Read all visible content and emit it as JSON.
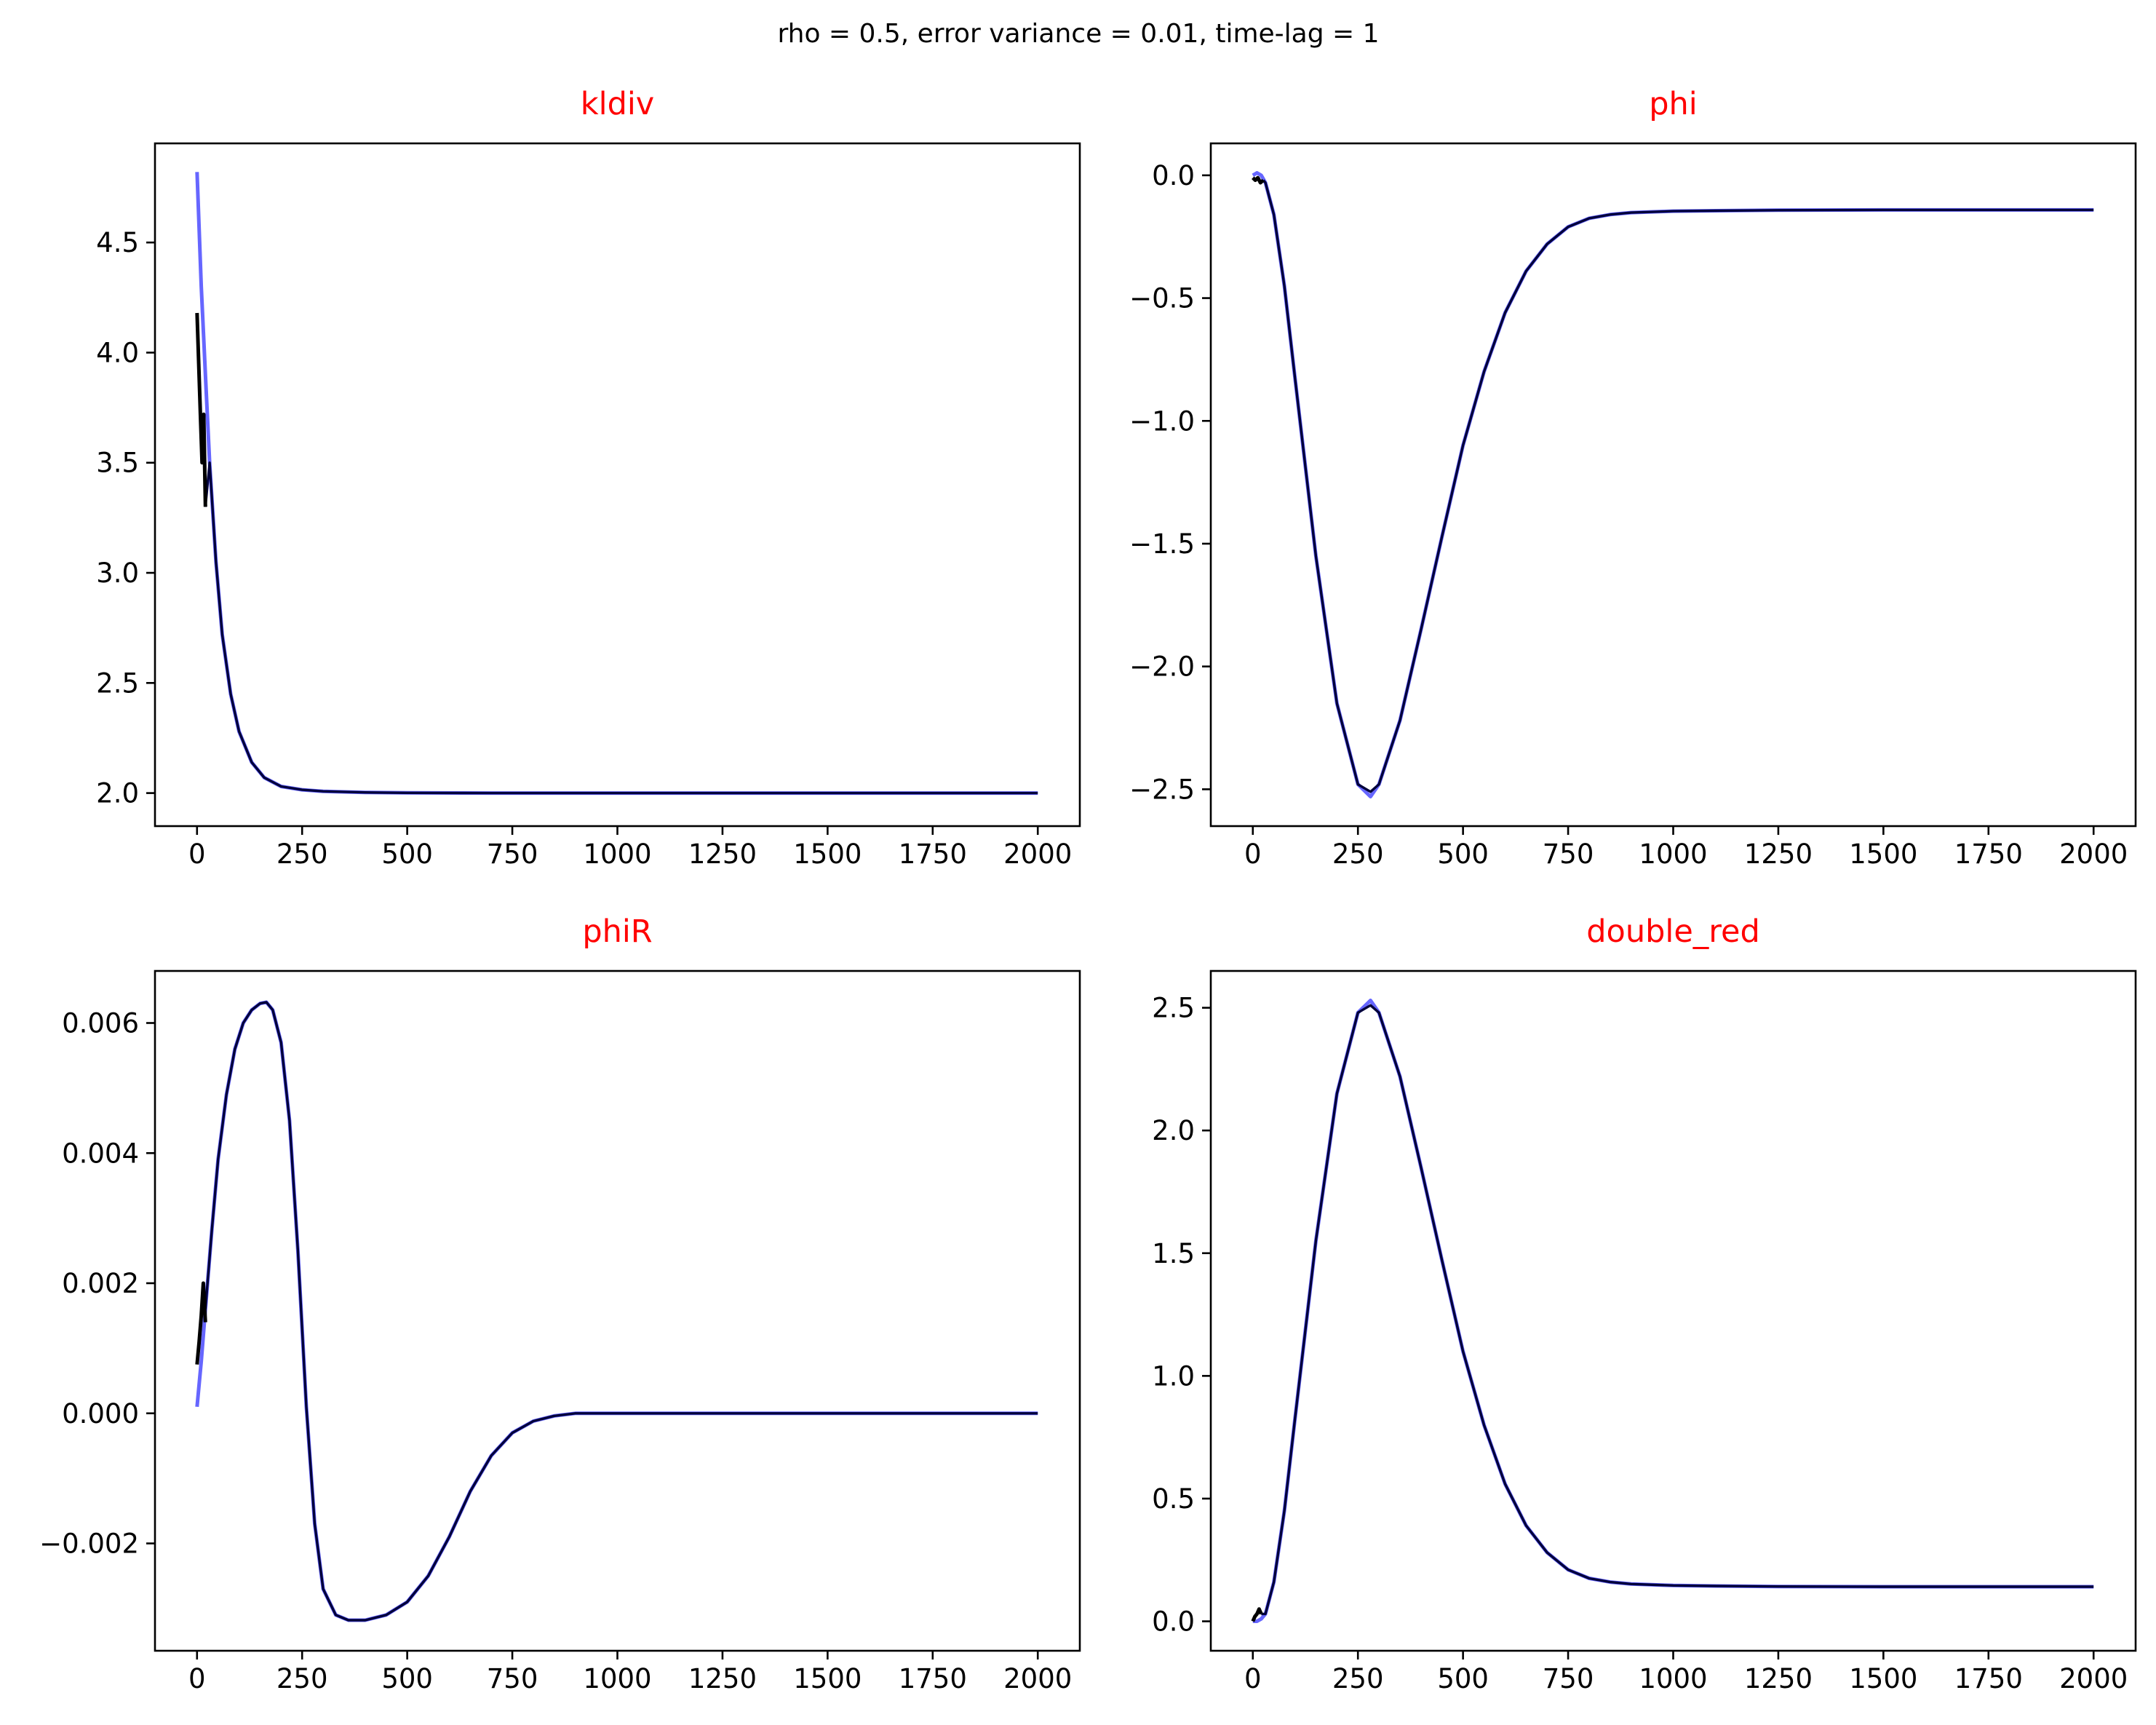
{
  "suptitle": "rho = 0.5, error variance = 0.01, time-lag = 1",
  "colors": {
    "title": "#ff0000",
    "series_light": "#6666ff",
    "series_dark": "#00003a",
    "spike": "#000000"
  },
  "chart_data": [
    {
      "type": "line",
      "title": "kldiv",
      "xlim": [
        -100,
        2100
      ],
      "ylim": [
        1.85,
        4.95
      ],
      "xticks": [
        0,
        250,
        500,
        750,
        1000,
        1250,
        1500,
        1750,
        2000
      ],
      "xtick_labels": [
        "0",
        "250",
        "500",
        "750",
        "1000",
        "1250",
        "1500",
        "1750",
        "2000"
      ],
      "yticks": [
        2.0,
        2.5,
        3.0,
        3.5,
        4.0,
        4.5
      ],
      "ytick_labels": [
        "2.0",
        "2.5",
        "3.0",
        "3.5",
        "4.0",
        "4.5"
      ],
      "series": [
        {
          "color": "#6666ff",
          "x": [
            0,
            10,
            20,
            30,
            45,
            60,
            80,
            100,
            130,
            160,
            200,
            250,
            300,
            400,
            500,
            700,
            1000,
            1500,
            2000
          ],
          "y": [
            4.82,
            4.3,
            3.9,
            3.5,
            3.05,
            2.72,
            2.45,
            2.28,
            2.14,
            2.07,
            2.03,
            2.015,
            2.008,
            2.003,
            2.001,
            2.0,
            2.0,
            2.0,
            2.0
          ]
        },
        {
          "color": "#00003a",
          "x": [
            20,
            30,
            45,
            60,
            80,
            100,
            130,
            160,
            200,
            250,
            300,
            400,
            500,
            700,
            1000,
            1500,
            2000
          ],
          "y": [
            3.3,
            3.5,
            3.05,
            2.72,
            2.45,
            2.28,
            2.14,
            2.07,
            2.03,
            2.015,
            2.008,
            2.003,
            2.001,
            2.0,
            2.0,
            2.0,
            2.0
          ]
        },
        {
          "color": "#000000",
          "x": [
            0,
            4,
            8,
            12,
            16,
            20
          ],
          "y": [
            4.18,
            3.95,
            3.72,
            3.5,
            3.72,
            3.3
          ]
        }
      ]
    },
    {
      "type": "line",
      "title": "phi",
      "xlim": [
        -100,
        2100
      ],
      "ylim": [
        -2.65,
        0.13
      ],
      "xticks": [
        0,
        250,
        500,
        750,
        1000,
        1250,
        1500,
        1750,
        2000
      ],
      "xtick_labels": [
        "0",
        "250",
        "500",
        "750",
        "1000",
        "1250",
        "1500",
        "1750",
        "2000"
      ],
      "yticks": [
        0.0,
        -0.5,
        -1.0,
        -1.5,
        -2.0,
        -2.5
      ],
      "ytick_labels": [
        "0.0",
        "−0.5",
        "−1.0",
        "−1.5",
        "−2.0",
        "−2.5"
      ],
      "series": [
        {
          "color": "#6666ff",
          "x": [
            0,
            10,
            20,
            30,
            50,
            75,
            100,
            150,
            200,
            250,
            280,
            300,
            350,
            400,
            450,
            500,
            550,
            600,
            650,
            700,
            750,
            800,
            850,
            900,
            1000,
            1100,
            1250,
            1500,
            2000
          ],
          "y": [
            0.0,
            0.01,
            0.0,
            -0.03,
            -0.16,
            -0.45,
            -0.82,
            -1.55,
            -2.15,
            -2.48,
            -2.53,
            -2.48,
            -2.22,
            -1.85,
            -1.47,
            -1.1,
            -0.8,
            -0.56,
            -0.39,
            -0.28,
            -0.21,
            -0.175,
            -0.16,
            -0.152,
            -0.146,
            -0.144,
            -0.142,
            -0.141,
            -0.141
          ]
        },
        {
          "color": "#00003a",
          "x": [
            25,
            30,
            50,
            75,
            100,
            150,
            200,
            250,
            280,
            300,
            350,
            400,
            450,
            500,
            550,
            600,
            650,
            700,
            750,
            800,
            850,
            900,
            1000,
            1100,
            1250,
            1500,
            2000
          ],
          "y": [
            -0.02,
            -0.03,
            -0.16,
            -0.45,
            -0.82,
            -1.55,
            -2.15,
            -2.48,
            -2.51,
            -2.48,
            -2.22,
            -1.85,
            -1.47,
            -1.1,
            -0.8,
            -0.56,
            -0.39,
            -0.28,
            -0.21,
            -0.175,
            -0.16,
            -0.152,
            -0.146,
            -0.144,
            -0.142,
            -0.141,
            -0.141
          ]
        },
        {
          "color": "#000000",
          "x": [
            0,
            6,
            12,
            18,
            25
          ],
          "y": [
            -0.01,
            -0.02,
            -0.01,
            -0.03,
            -0.02
          ]
        }
      ]
    },
    {
      "type": "line",
      "title": "phiR",
      "xlim": [
        -100,
        2100
      ],
      "ylim": [
        -0.00365,
        0.0068
      ],
      "xticks": [
        0,
        250,
        500,
        750,
        1000,
        1250,
        1500,
        1750,
        2000
      ],
      "xtick_labels": [
        "0",
        "250",
        "500",
        "750",
        "1000",
        "1250",
        "1500",
        "1750",
        "2000"
      ],
      "yticks": [
        -0.002,
        0.0,
        0.002,
        0.004,
        0.006
      ],
      "ytick_labels": [
        "−0.002",
        "0.000",
        "0.002",
        "0.004",
        "0.006"
      ],
      "series": [
        {
          "color": "#6666ff",
          "x": [
            0,
            10,
            20,
            35,
            50,
            70,
            90,
            110,
            130,
            150,
            165,
            180,
            200,
            220,
            240,
            260,
            280,
            300,
            330,
            360,
            400,
            450,
            500,
            550,
            600,
            650,
            700,
            750,
            800,
            850,
            900,
            950,
            1000,
            1100,
            1250,
            1500,
            2000
          ],
          "y": [
            0.0001,
            0.0008,
            0.0016,
            0.0028,
            0.0039,
            0.0049,
            0.0056,
            0.006,
            0.0062,
            0.0063,
            0.00632,
            0.0062,
            0.0057,
            0.0045,
            0.0025,
            0.0001,
            -0.0017,
            -0.0027,
            -0.0031,
            -0.00318,
            -0.00318,
            -0.0031,
            -0.0029,
            -0.0025,
            -0.0019,
            -0.0012,
            -0.00065,
            -0.0003,
            -0.00012,
            -4e-05,
            0.0,
            0.0,
            0.0,
            0.0,
            0.0,
            0.0,
            0.0
          ]
        },
        {
          "color": "#00003a",
          "x": [
            20,
            35,
            50,
            70,
            90,
            110,
            130,
            150,
            165,
            180,
            200,
            220,
            240,
            260,
            280,
            300,
            330,
            360,
            400,
            450,
            500,
            550,
            600,
            650,
            700,
            750,
            800,
            850,
            900,
            950,
            1000,
            1100,
            1250,
            1500,
            2000
          ],
          "y": [
            0.0016,
            0.0028,
            0.0039,
            0.0049,
            0.0056,
            0.006,
            0.0062,
            0.0063,
            0.00632,
            0.0062,
            0.0057,
            0.0045,
            0.0025,
            0.0001,
            -0.0017,
            -0.0027,
            -0.0031,
            -0.00318,
            -0.00318,
            -0.0031,
            -0.0029,
            -0.0025,
            -0.0019,
            -0.0012,
            -0.00065,
            -0.0003,
            -0.00012,
            -4e-05,
            0.0,
            0.0,
            0.0,
            0.0,
            0.0,
            0.0,
            0.0
          ]
        },
        {
          "color": "#000000",
          "x": [
            0,
            5,
            10,
            15,
            20
          ],
          "y": [
            0.00075,
            0.0011,
            0.0015,
            0.002,
            0.0014
          ]
        }
      ]
    },
    {
      "type": "line",
      "title": "double_red",
      "xlim": [
        -100,
        2100
      ],
      "ylim": [
        -0.12,
        2.65
      ],
      "xticks": [
        0,
        250,
        500,
        750,
        1000,
        1250,
        1500,
        1750,
        2000
      ],
      "xtick_labels": [
        "0",
        "250",
        "500",
        "750",
        "1000",
        "1250",
        "1500",
        "1750",
        "2000"
      ],
      "yticks": [
        0.0,
        0.5,
        1.0,
        1.5,
        2.0,
        2.5
      ],
      "ytick_labels": [
        "0.0",
        "0.5",
        "1.0",
        "1.5",
        "2.0",
        "2.5"
      ],
      "series": [
        {
          "color": "#6666ff",
          "x": [
            0,
            10,
            20,
            30,
            50,
            75,
            100,
            150,
            200,
            250,
            280,
            300,
            350,
            400,
            450,
            500,
            550,
            600,
            650,
            700,
            750,
            800,
            850,
            900,
            1000,
            1100,
            1250,
            1500,
            2000
          ],
          "y": [
            0.0,
            0.0,
            0.01,
            0.03,
            0.16,
            0.45,
            0.82,
            1.55,
            2.15,
            2.48,
            2.53,
            2.48,
            2.22,
            1.85,
            1.47,
            1.1,
            0.8,
            0.56,
            0.39,
            0.28,
            0.21,
            0.175,
            0.16,
            0.152,
            0.146,
            0.144,
            0.142,
            0.141,
            0.141
          ]
        },
        {
          "color": "#00003a",
          "x": [
            20,
            30,
            50,
            75,
            100,
            150,
            200,
            250,
            280,
            300,
            350,
            400,
            450,
            500,
            550,
            600,
            650,
            700,
            750,
            800,
            850,
            900,
            1000,
            1100,
            1250,
            1500,
            2000
          ],
          "y": [
            0.03,
            0.03,
            0.16,
            0.45,
            0.82,
            1.55,
            2.15,
            2.48,
            2.51,
            2.48,
            2.22,
            1.85,
            1.47,
            1.1,
            0.8,
            0.56,
            0.39,
            0.28,
            0.21,
            0.175,
            0.16,
            0.152,
            0.146,
            0.144,
            0.142,
            0.141,
            0.141
          ]
        },
        {
          "color": "#000000",
          "x": [
            0,
            5,
            10,
            15,
            20
          ],
          "y": [
            0.0,
            0.02,
            0.03,
            0.05,
            0.03
          ]
        }
      ]
    }
  ]
}
